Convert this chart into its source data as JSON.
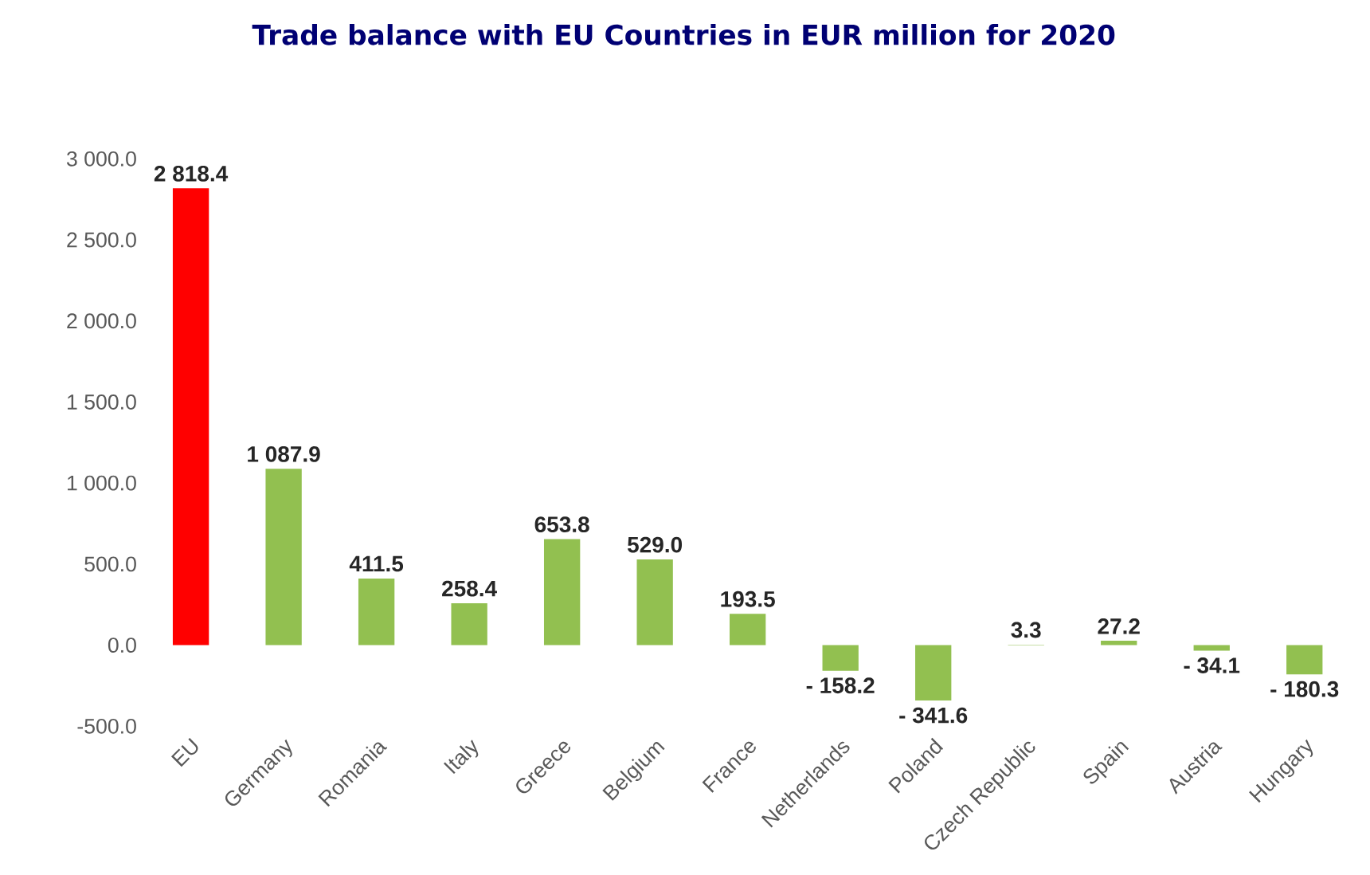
{
  "chart_data": {
    "type": "bar",
    "title": "Trade balance with EU Countries in EUR million for 2020",
    "categories": [
      "EU",
      "Germany",
      "Romania",
      "Italy",
      "Greece",
      "Belgium",
      "France",
      "Netherlands",
      "Poland",
      "Czech Republic",
      "Spain",
      "Austria",
      "Hungary"
    ],
    "values": [
      2818.4,
      1087.9,
      411.5,
      258.4,
      653.8,
      529.0,
      193.5,
      -158.2,
      -341.6,
      3.3,
      27.2,
      -34.1,
      -180.3
    ],
    "value_labels": [
      "2 818.4",
      "1 087.9",
      "411.5",
      "258.4",
      "653.8",
      "529.0",
      "193.5",
      "- 158.2",
      "- 341.6",
      "3.3",
      "27.2",
      "- 34.1",
      "- 180.3"
    ],
    "colors": [
      "#ff0000",
      "#92c050",
      "#92c050",
      "#92c050",
      "#92c050",
      "#92c050",
      "#92c050",
      "#92c050",
      "#92c050",
      "#92c050",
      "#92c050",
      "#92c050",
      "#92c050"
    ],
    "ylim": [
      -500,
      3000
    ],
    "yticks": [
      {
        "value": -500,
        "label": "-500.0"
      },
      {
        "value": 0,
        "label": "0.0"
      },
      {
        "value": 500,
        "label": "500.0"
      },
      {
        "value": 1000,
        "label": "1 000.0"
      },
      {
        "value": 1500,
        "label": "1 500.0"
      },
      {
        "value": 2000,
        "label": "2 000.0"
      },
      {
        "value": 2500,
        "label": "2 500.0"
      },
      {
        "value": 3000,
        "label": "3 000.0"
      }
    ]
  }
}
